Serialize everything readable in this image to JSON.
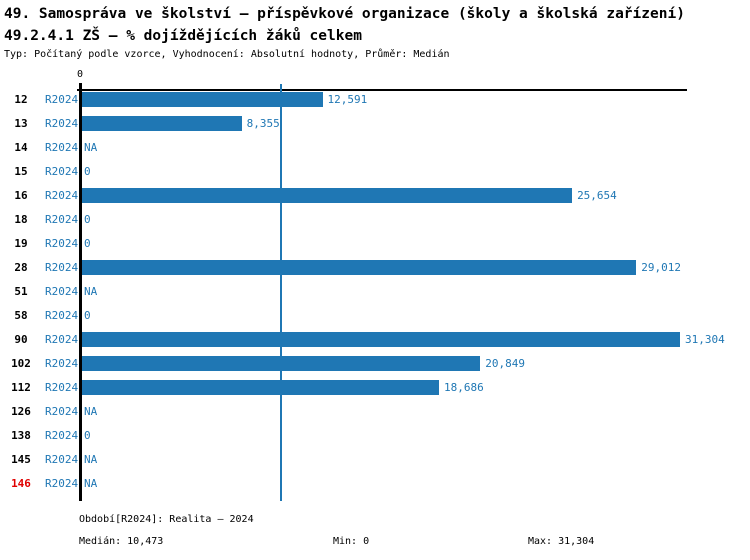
{
  "colors": {
    "bar_blue": "#1f77b4",
    "blue_text": "#1f77b4",
    "red_text": "#e00000",
    "axis_black": "#000000"
  },
  "chart_data": {
    "type": "bar",
    "orientation": "horizontal",
    "title": "49. Samospráva ve školství – příspěvkové organizace (školy a školská zařízení)",
    "subtitle": "49.2.4.1 ZŠ – % dojíždějících žáků celkem",
    "meta": "Typ: Počítaný podle vzorce, Vyhodnocení: Absolutní hodnoty, Průměr: Medián",
    "axis_zero_label": "0",
    "series_label": "R2024",
    "categories": [
      "12",
      "13",
      "14",
      "15",
      "16",
      "18",
      "19",
      "28",
      "51",
      "58",
      "90",
      "102",
      "112",
      "126",
      "138",
      "145",
      "146"
    ],
    "values": [
      12591,
      8355,
      null,
      0,
      25654,
      0,
      0,
      29012,
      null,
      0,
      31304,
      20849,
      18686,
      null,
      0,
      null,
      null
    ],
    "value_labels": [
      "12,591",
      "8,355",
      "NA",
      "0",
      "25,654",
      "0",
      "0",
      "29,012",
      "NA",
      "0",
      "31,304",
      "20,849",
      "18,686",
      "NA",
      "0",
      "NA",
      "NA"
    ],
    "red_categories": [
      "146"
    ],
    "xlim": [
      0,
      31304
    ],
    "median_line_value": 10473,
    "grid": false,
    "legend": false
  },
  "footer": {
    "period": "Období[R2024]: Realita – 2024",
    "median": "Medián: 10,473",
    "min": "Min: 0",
    "max": "Max: 31,304"
  }
}
